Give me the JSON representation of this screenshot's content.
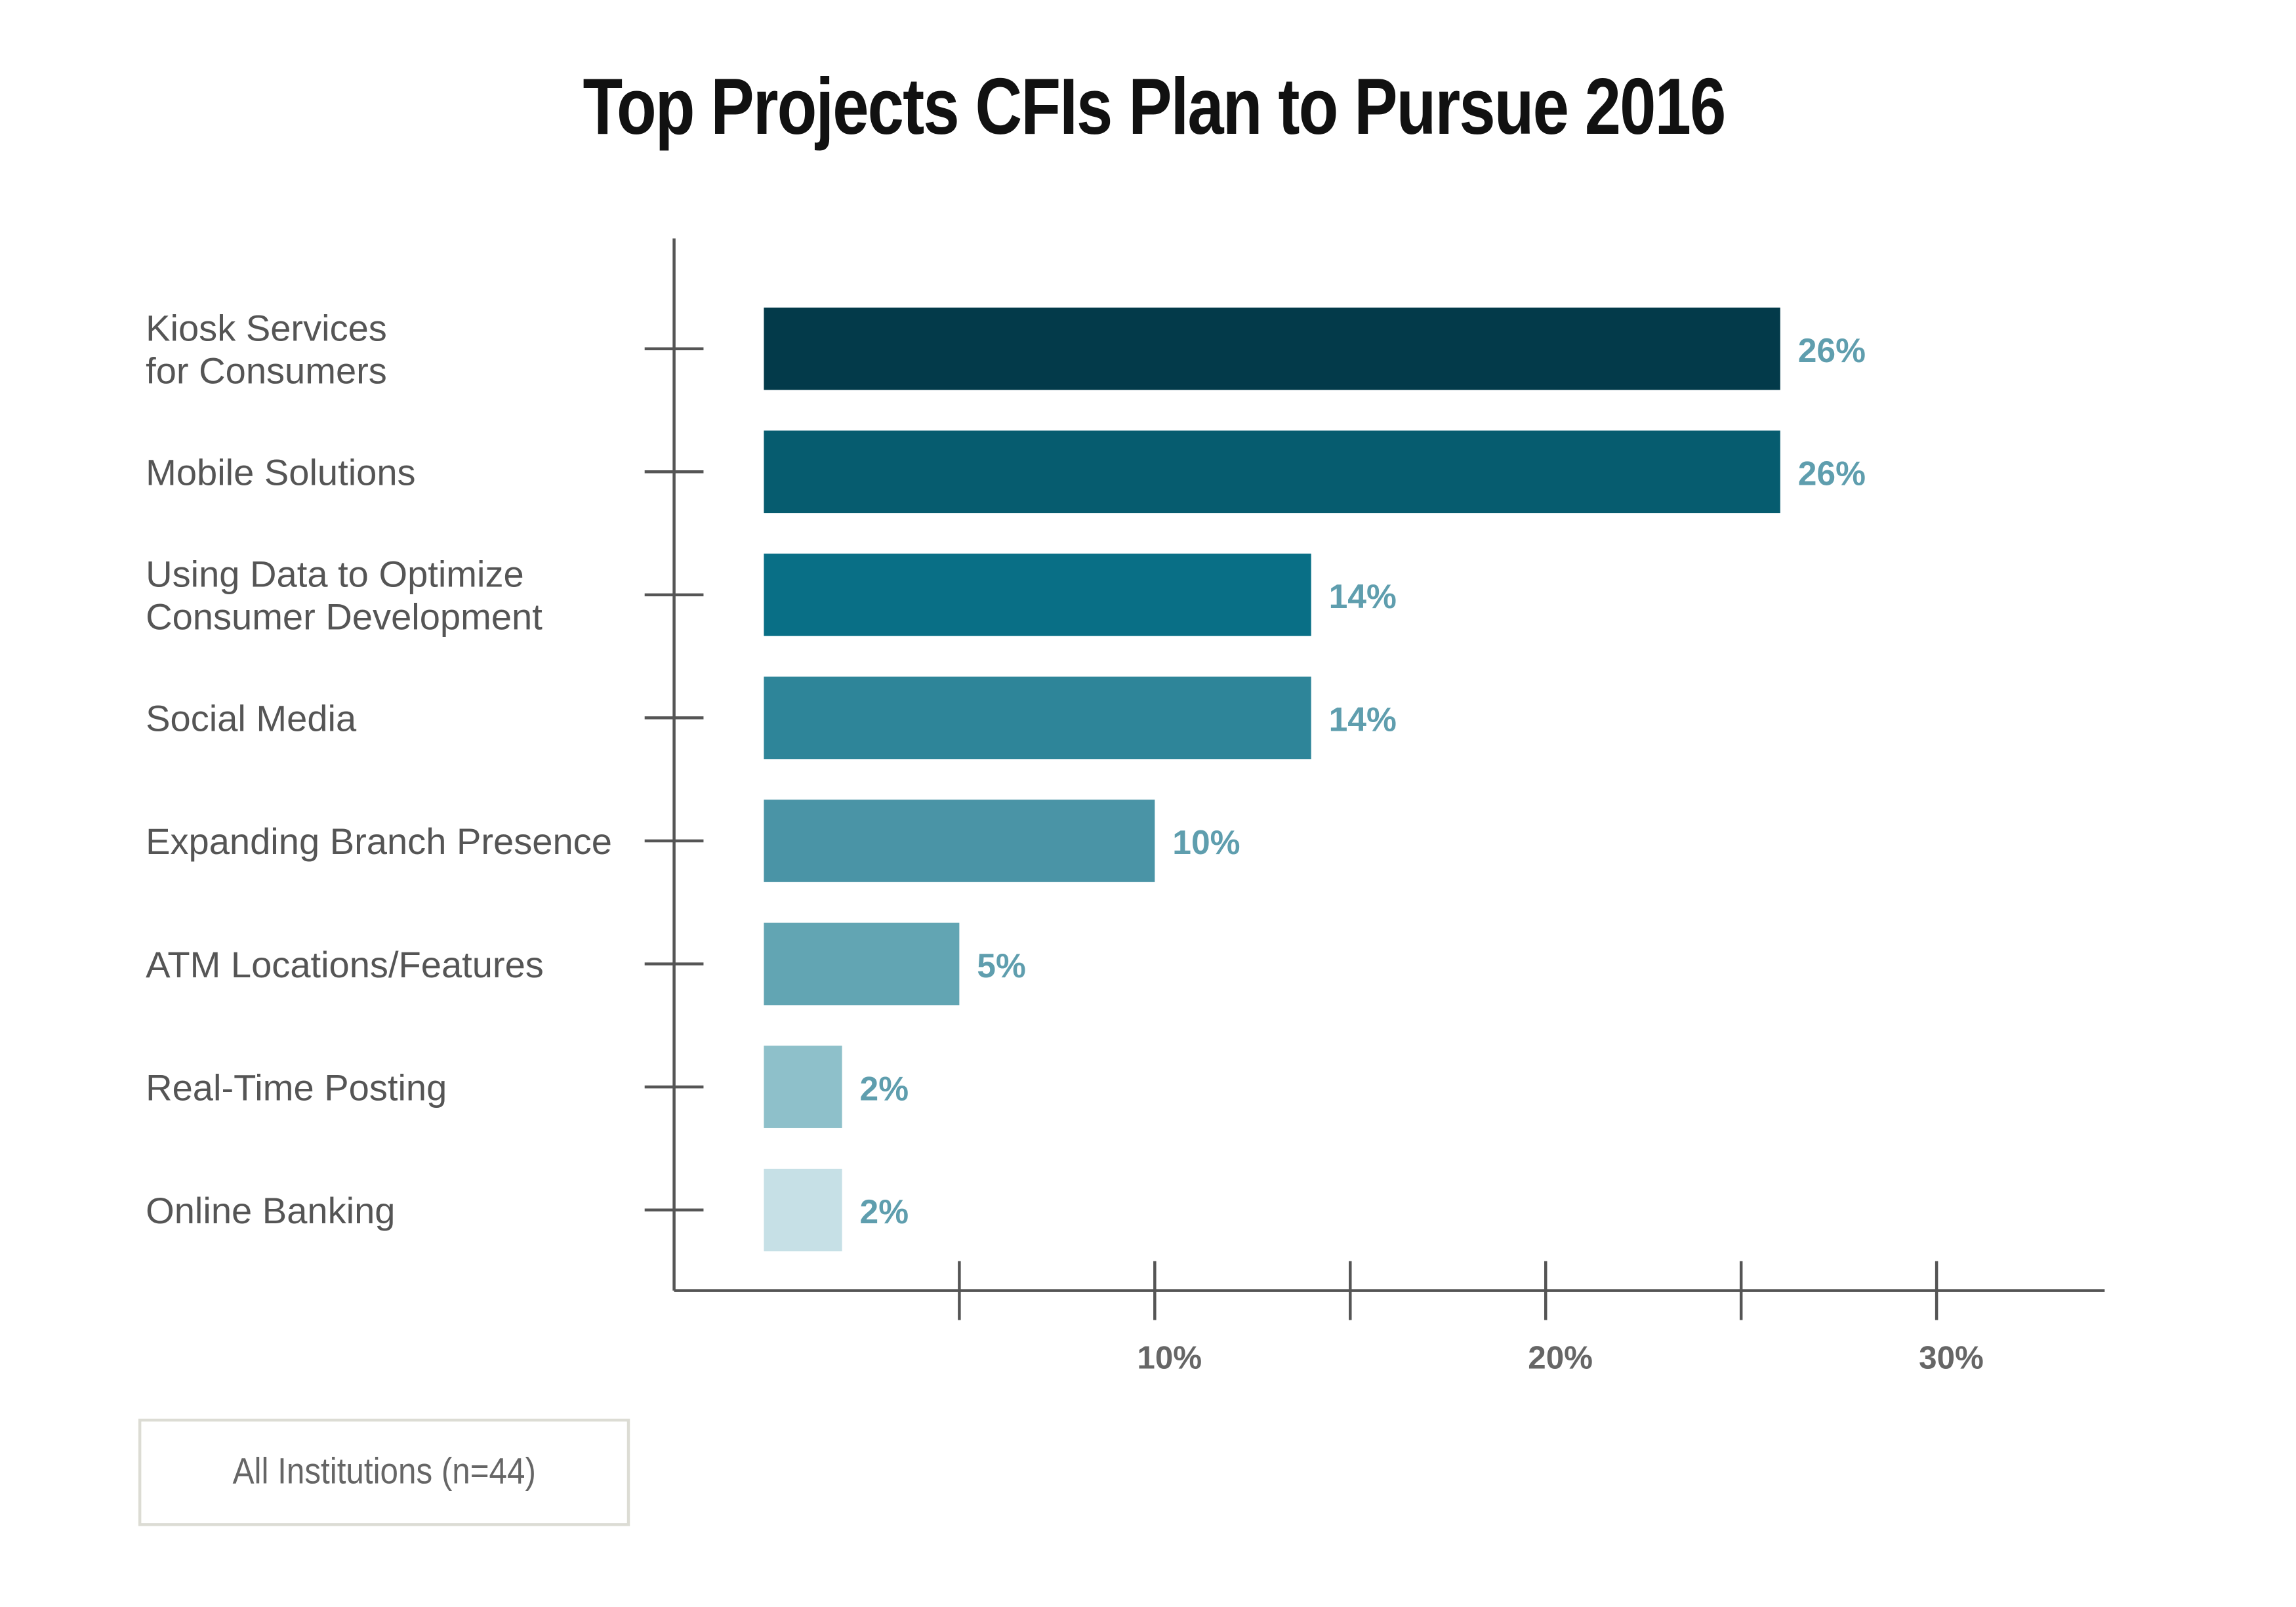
{
  "chart_data": {
    "type": "bar",
    "orientation": "horizontal",
    "title": "Top Projects CFIs Plan to Pursue 2016",
    "categories": [
      "Kiosk Services\nfor Consumers",
      "Mobile Solutions",
      "Using Data to Optimize\nConsumer Development",
      "Social Media",
      "Expanding Branch Presence",
      "ATM Locations/Features",
      "Real-Time Posting",
      "Online Banking"
    ],
    "values": [
      26,
      26,
      14,
      14,
      10,
      5,
      2,
      2
    ],
    "value_labels": [
      "26%",
      "26%",
      "14%",
      "14%",
      "10%",
      "5%",
      "2%",
      "2%"
    ],
    "bar_colors": [
      "#033a4a",
      "#065c6f",
      "#096f86",
      "#2e8599",
      "#4a94a6",
      "#62a5b3",
      "#8ec0ca",
      "#c6e0e6"
    ],
    "value_label_color": "#5f9eae",
    "xlim": [
      0,
      35
    ],
    "x_ticks": [
      5,
      10,
      15,
      20,
      25,
      30
    ],
    "x_tick_labels": {
      "10": "10%",
      "20": "20%",
      "30": "30%"
    },
    "xlabel": "",
    "ylabel": "",
    "grid": false,
    "legend": {
      "text": "All Institutions (n=44)",
      "placement": "bottom-left"
    }
  }
}
